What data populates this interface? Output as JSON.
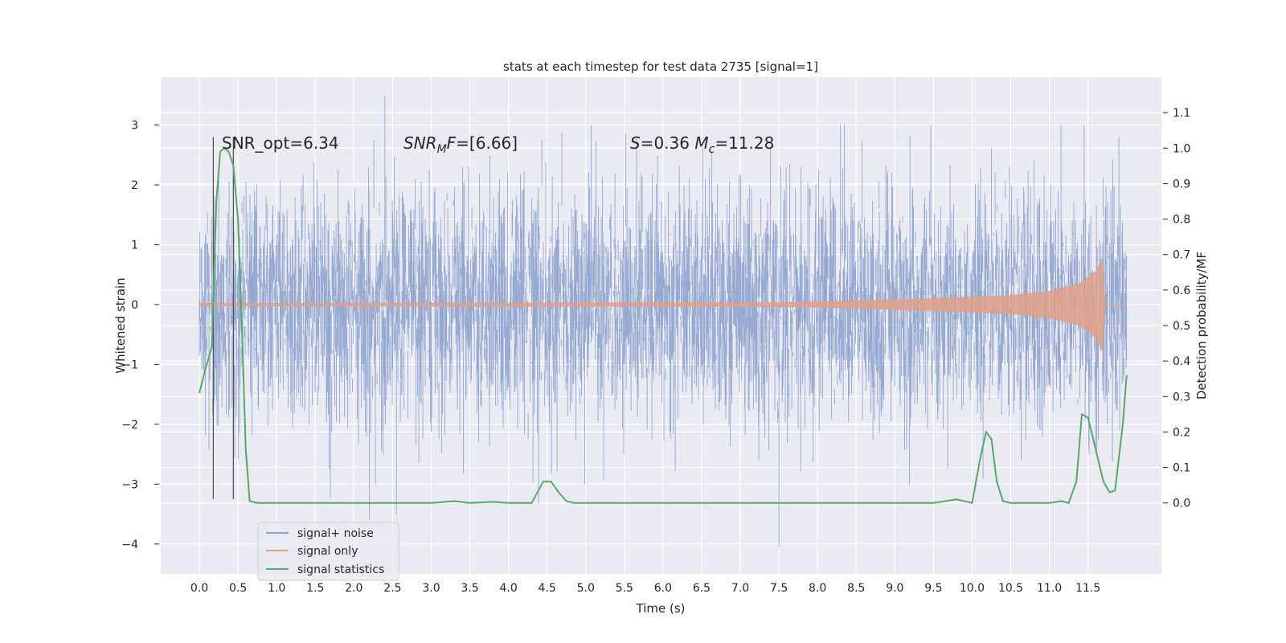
{
  "chart_data": {
    "type": "line",
    "title": "stats at each timestep for test data 2735 [signal=1]",
    "xlabel": "Time (s)",
    "ylabel": "Whitened strain",
    "ylabel_right": "Detection probability/MF",
    "xlim": [
      -0.5,
      12.45
    ],
    "ylim": [
      -4.5,
      3.8
    ],
    "ylim_right": [
      -0.2,
      1.2
    ],
    "x_ticks": [
      "0.0",
      "0.5",
      "1.0",
      "1.5",
      "2.0",
      "2.5",
      "3.0",
      "3.5",
      "4.0",
      "4.5",
      "5.0",
      "5.5",
      "6.0",
      "6.5",
      "7.0",
      "7.5",
      "8.0",
      "8.5",
      "9.0",
      "9.5",
      "10.0",
      "10.5",
      "11.0",
      "11.5"
    ],
    "y_ticks_left": [
      -4,
      -3,
      -2,
      -1,
      0,
      1,
      2,
      3
    ],
    "y_ticks_right": [
      "0.0",
      "0.1",
      "0.2",
      "0.3",
      "0.4",
      "0.5",
      "0.6",
      "0.7",
      "0.8",
      "0.9",
      "1.0",
      "1.1"
    ],
    "grid": true,
    "legend_placement": "lower-left",
    "annotations": [
      {
        "text": "SNR_opt=6.34",
        "x": 0.2,
        "y": 2.75
      },
      {
        "text": "SNR_MF=[6.66]",
        "x": 2.6,
        "y": 2.75
      },
      {
        "text": "S=0.36   M_c=11.28",
        "x": 5.6,
        "y": 2.75
      }
    ],
    "vertical_markers": [
      0.18,
      0.44
    ],
    "series": [
      {
        "name": "signal+ noise",
        "color": "#8fa3cf",
        "axis": "left",
        "description_values": {
          "x_range": [
            0.0,
            12.0
          ],
          "typical_amplitude": 1.3,
          "extremes": [
            -4.05,
            3.55
          ]
        }
      },
      {
        "name": "signal only",
        "color": "#e0a088",
        "axis": "left",
        "envelope": {
          "x": [
            0.0,
            7.5,
            8.5,
            9.5,
            10.5,
            11.0,
            11.4,
            11.6,
            11.68,
            11.72,
            12.0
          ],
          "amplitude": [
            0.02,
            0.03,
            0.06,
            0.1,
            0.15,
            0.22,
            0.35,
            0.55,
            0.75,
            0.0,
            0.0
          ]
        }
      },
      {
        "name": "signal statistics",
        "color": "#55a868",
        "axis": "right",
        "x": [
          0.0,
          0.08,
          0.16,
          0.22,
          0.27,
          0.32,
          0.38,
          0.44,
          0.5,
          0.55,
          0.6,
          0.65,
          0.75,
          1.0,
          2.0,
          2.5,
          3.0,
          3.3,
          3.5,
          3.8,
          4.0,
          4.3,
          4.45,
          4.55,
          4.65,
          4.75,
          4.85,
          5.0,
          5.5,
          6.0,
          7.0,
          7.5,
          8.0,
          9.0,
          9.5,
          9.8,
          10.0,
          10.1,
          10.18,
          10.25,
          10.32,
          10.4,
          10.5,
          10.8,
          11.0,
          11.15,
          11.25,
          11.35,
          11.42,
          11.5,
          11.6,
          11.7,
          11.78,
          11.85,
          11.95,
          12.0
        ],
        "values": [
          0.31,
          0.38,
          0.44,
          0.85,
          0.99,
          1.0,
          0.99,
          0.95,
          0.8,
          0.5,
          0.15,
          0.005,
          0.0,
          0.0,
          0.0,
          0.0,
          0.0,
          0.005,
          0.0,
          0.003,
          0.0,
          0.0,
          0.06,
          0.06,
          0.03,
          0.005,
          0.0,
          0.0,
          0.0,
          0.0,
          0.0,
          0.0,
          0.0,
          0.0,
          0.0,
          0.01,
          0.0,
          0.12,
          0.2,
          0.18,
          0.06,
          0.005,
          0.0,
          0.0,
          0.0,
          0.005,
          0.0,
          0.06,
          0.25,
          0.24,
          0.15,
          0.06,
          0.03,
          0.035,
          0.22,
          0.36
        ]
      }
    ]
  }
}
